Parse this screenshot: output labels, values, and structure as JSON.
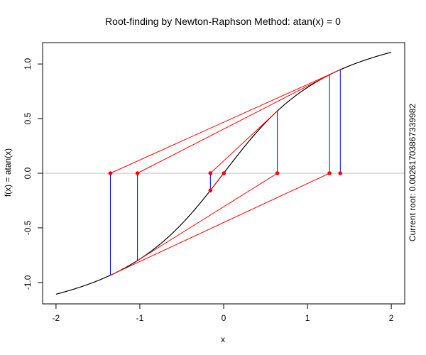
{
  "chart_data": {
    "type": "line",
    "title": "Root-finding by Newton-Raphson Method: atan(x) = 0",
    "xlabel": "x",
    "ylabel": "f(x) = atan(x)",
    "side_label": "Current root: 0.00261703867339982",
    "xlim": [
      -2,
      2
    ],
    "ylim": [
      -1.1071,
      1.1071
    ],
    "x_ticks": [
      -2,
      -1,
      0,
      1,
      2
    ],
    "x_tick_labels": [
      "-2",
      "-1",
      "0",
      "1",
      "2"
    ],
    "y_ticks": [
      -1.0,
      -0.5,
      0.0,
      0.5,
      1.0
    ],
    "y_tick_labels": [
      "-1.0",
      "-0.5",
      "0.0",
      "0.5",
      "1.0"
    ],
    "function": "atan",
    "curve_domain": [
      -2,
      2
    ],
    "iterates": [
      1.39174520382,
      -1.35139380011,
      1.26307780291,
      -1.02853761577,
      0.64082051136,
      -0.15818418346,
      0.00261703867
    ],
    "tangent_iterations": [
      {
        "from": 1.39174520382,
        "to": -1.35139380011
      },
      {
        "from": -1.35139380011,
        "to": 1.26307780291
      },
      {
        "from": 1.26307780291,
        "to": -1.02853761577
      },
      {
        "from": -1.02853761577,
        "to": 0.64082051136
      },
      {
        "from": 0.64082051136,
        "to": -0.15818418346
      },
      {
        "from": -0.15818418346,
        "to": 0.00261703867
      }
    ],
    "colors": {
      "curve": "#000000",
      "tangent": "#ff0000",
      "vertical": "#0000ff",
      "zero_line": "#bebebe",
      "point": "#ff0000",
      "axis": "#000000"
    }
  }
}
